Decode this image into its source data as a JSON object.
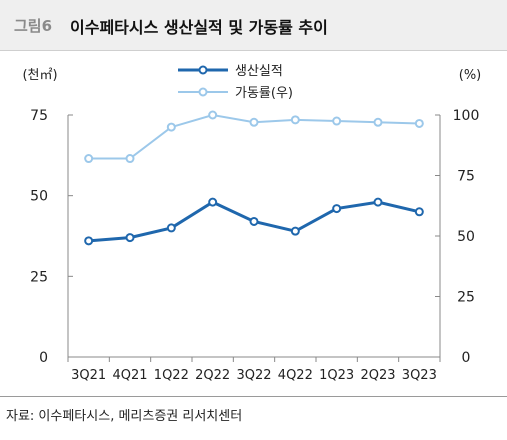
{
  "header": {
    "figure_label": "그림6",
    "title": "이수페타시스 생산실적 및 가동률 추이"
  },
  "source": "자료: 이수페타시스, 메리츠증권 리서치센터",
  "chart_data": {
    "type": "line",
    "categories": [
      "3Q21",
      "4Q21",
      "1Q22",
      "2Q22",
      "3Q22",
      "4Q22",
      "1Q23",
      "2Q23",
      "3Q23"
    ],
    "series": [
      {
        "name": "생산실적",
        "axis": "left",
        "color": "#1f67ad",
        "values": [
          36,
          37,
          40,
          48,
          42,
          39,
          46,
          48,
          45
        ]
      },
      {
        "name": "가동률(우)",
        "axis": "right",
        "color": "#9cc8ea",
        "values": [
          82,
          82,
          95,
          100,
          97,
          98,
          97.5,
          97,
          96.5
        ]
      }
    ],
    "y_left": {
      "unit_label": "(천㎡)",
      "ylim": [
        0,
        75
      ],
      "ticks": [
        0,
        25,
        50,
        75
      ]
    },
    "y_right": {
      "unit_label": "(%)",
      "ylim": [
        0,
        100
      ],
      "ticks": [
        0,
        25,
        50,
        75,
        100
      ]
    },
    "legend_position": "top-center",
    "grid": false
  }
}
